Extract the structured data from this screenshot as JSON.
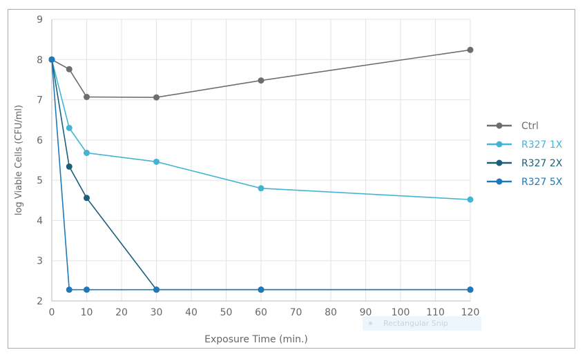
{
  "chart_data": {
    "type": "line",
    "title": "",
    "xlabel": "Exposure Time (min.)",
    "ylabel": "log Viable Cells (CFU/ml)",
    "xlim": [
      0,
      120
    ],
    "ylim": [
      2,
      9
    ],
    "xticks": [
      0,
      10,
      20,
      30,
      40,
      50,
      60,
      70,
      80,
      90,
      100,
      110,
      120
    ],
    "yticks": [
      2,
      3,
      4,
      5,
      6,
      7,
      8,
      9
    ],
    "grid": true,
    "legend_position": "right",
    "x": [
      0,
      5,
      10,
      30,
      60,
      120
    ],
    "series": [
      {
        "name": "Ctrl",
        "color": "#6d6d6d",
        "values": [
          8.0,
          7.76,
          7.07,
          7.06,
          7.48,
          8.24
        ]
      },
      {
        "name": "R327 1X",
        "color": "#45b4d2",
        "values": [
          8.0,
          6.3,
          5.68,
          5.46,
          4.8,
          4.52
        ]
      },
      {
        "name": "R327 2X",
        "color": "#1a5e7a",
        "values": [
          8.0,
          5.34,
          4.56,
          2.28,
          2.28,
          2.28
        ]
      },
      {
        "name": "R327 5X",
        "color": "#1f78b8",
        "values": [
          8.0,
          2.28,
          2.28,
          2.28,
          2.28,
          2.28
        ]
      }
    ]
  },
  "overlay": {
    "label": "Rectangular Snip"
  }
}
